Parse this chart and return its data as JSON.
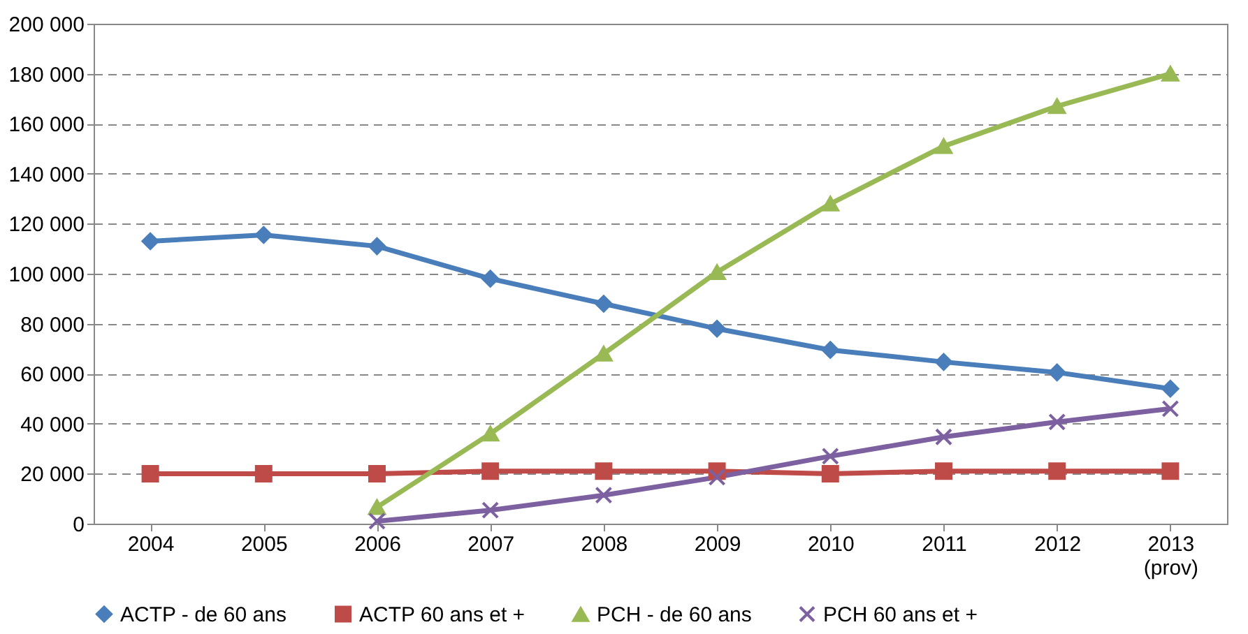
{
  "chart_data": {
    "type": "line",
    "categories": [
      "2004",
      "2005",
      "2006",
      "2007",
      "2008",
      "2009",
      "2010",
      "2011",
      "2012",
      "2013\n(prov)"
    ],
    "series": [
      {
        "name": "ACTP - de 60 ans",
        "color": "#4a7ebb",
        "marker": "diamond",
        "values": [
          113000,
          115500,
          111000,
          98000,
          88000,
          78000,
          69500,
          64700,
          60500,
          54000
        ]
      },
      {
        "name": "ACTP 60 ans et +",
        "color": "#be4b48",
        "marker": "square",
        "values": [
          20000,
          20000,
          20000,
          21000,
          21000,
          21000,
          20000,
          21000,
          21000,
          21000
        ]
      },
      {
        "name": "PCH - de 60 ans",
        "color": "#98b954",
        "marker": "triangle",
        "values": [
          null,
          null,
          6600,
          36000,
          68000,
          100600,
          128000,
          151000,
          167000,
          180000
        ]
      },
      {
        "name": "PCH 60 ans et +",
        "color": "#7d60a0",
        "marker": "cross",
        "values": [
          null,
          null,
          1000,
          5400,
          11400,
          18600,
          27000,
          34700,
          40700,
          46000
        ]
      }
    ],
    "ylim": [
      0,
      200000
    ],
    "yticks": [
      0,
      {
        "value": 20000,
        "label": "20 000"
      },
      {
        "value": 40000,
        "label": "40 000"
      },
      {
        "value": 60000,
        "label": "60 000"
      },
      {
        "value": 80000,
        "label": "80 000"
      },
      {
        "value": 100000,
        "label": "100 000"
      },
      {
        "value": 120000,
        "label": "120 000"
      },
      {
        "value": 140000,
        "label": "140 000"
      },
      {
        "value": 160000,
        "label": "160 000"
      },
      {
        "value": 180000,
        "label": "180 000"
      },
      {
        "value": 200000,
        "label": "200 000"
      }
    ],
    "grid": "y",
    "legend": "bottom",
    "line_style": "solid"
  }
}
